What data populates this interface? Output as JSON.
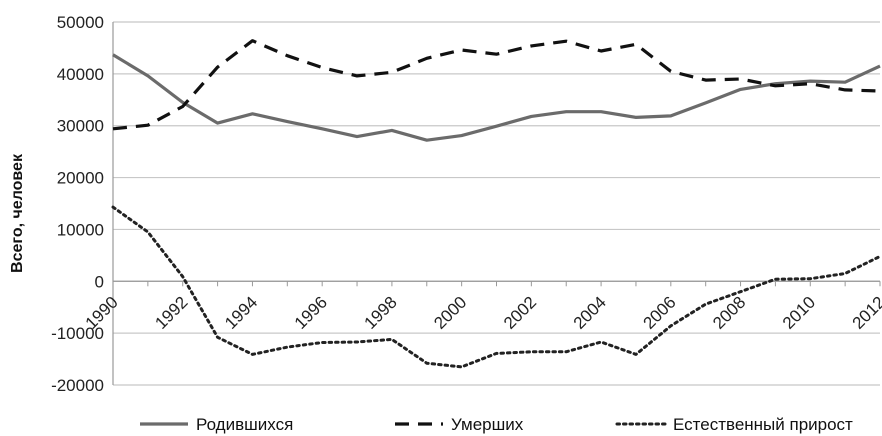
{
  "chart_data": {
    "type": "line",
    "title": "",
    "xlabel": "",
    "ylabel": "Всего, человек",
    "x": [
      1990,
      1991,
      1992,
      1993,
      1994,
      1995,
      1996,
      1997,
      1998,
      1999,
      2000,
      2001,
      2002,
      2003,
      2004,
      2005,
      2006,
      2007,
      2008,
      2009,
      2010,
      2011,
      2012
    ],
    "xticks": [
      "1990",
      "1992",
      "1994",
      "1996",
      "1998",
      "2000",
      "2002",
      "2004",
      "2006",
      "2008",
      "2010",
      "2012"
    ],
    "yticks": [
      "50000",
      "40000",
      "30000",
      "20000",
      "10000",
      "0",
      "-10000",
      "-20000"
    ],
    "ylim": [
      -20000,
      50000
    ],
    "grid": true,
    "legend_position": "bottom",
    "series": [
      {
        "name": "Родившихся",
        "style": "solid",
        "color": "#6b6b6b",
        "values": [
          43700,
          39600,
          34500,
          30500,
          32300,
          30800,
          29400,
          27900,
          29100,
          27200,
          28100,
          29900,
          31800,
          32700,
          32700,
          31600,
          31900,
          34400,
          37000,
          38100,
          38600,
          38400,
          41500
        ]
      },
      {
        "name": "Умерших",
        "style": "dashed",
        "color": "#111111",
        "values": [
          29400,
          30100,
          33700,
          41300,
          46400,
          43500,
          41200,
          39600,
          40300,
          43000,
          44600,
          43800,
          45400,
          46300,
          44400,
          45700,
          40500,
          38800,
          39000,
          37700,
          38100,
          36900,
          36700
        ]
      },
      {
        "name": "Естественный прирост",
        "style": "dotted",
        "color": "#222222",
        "values": [
          14300,
          9500,
          900,
          -10800,
          -14100,
          -12700,
          -11800,
          -11700,
          -11200,
          -15800,
          -16500,
          -13900,
          -13600,
          -13600,
          -11700,
          -14100,
          -8600,
          -4400,
          -2000,
          400,
          500,
          1500,
          4800
        ]
      }
    ]
  }
}
